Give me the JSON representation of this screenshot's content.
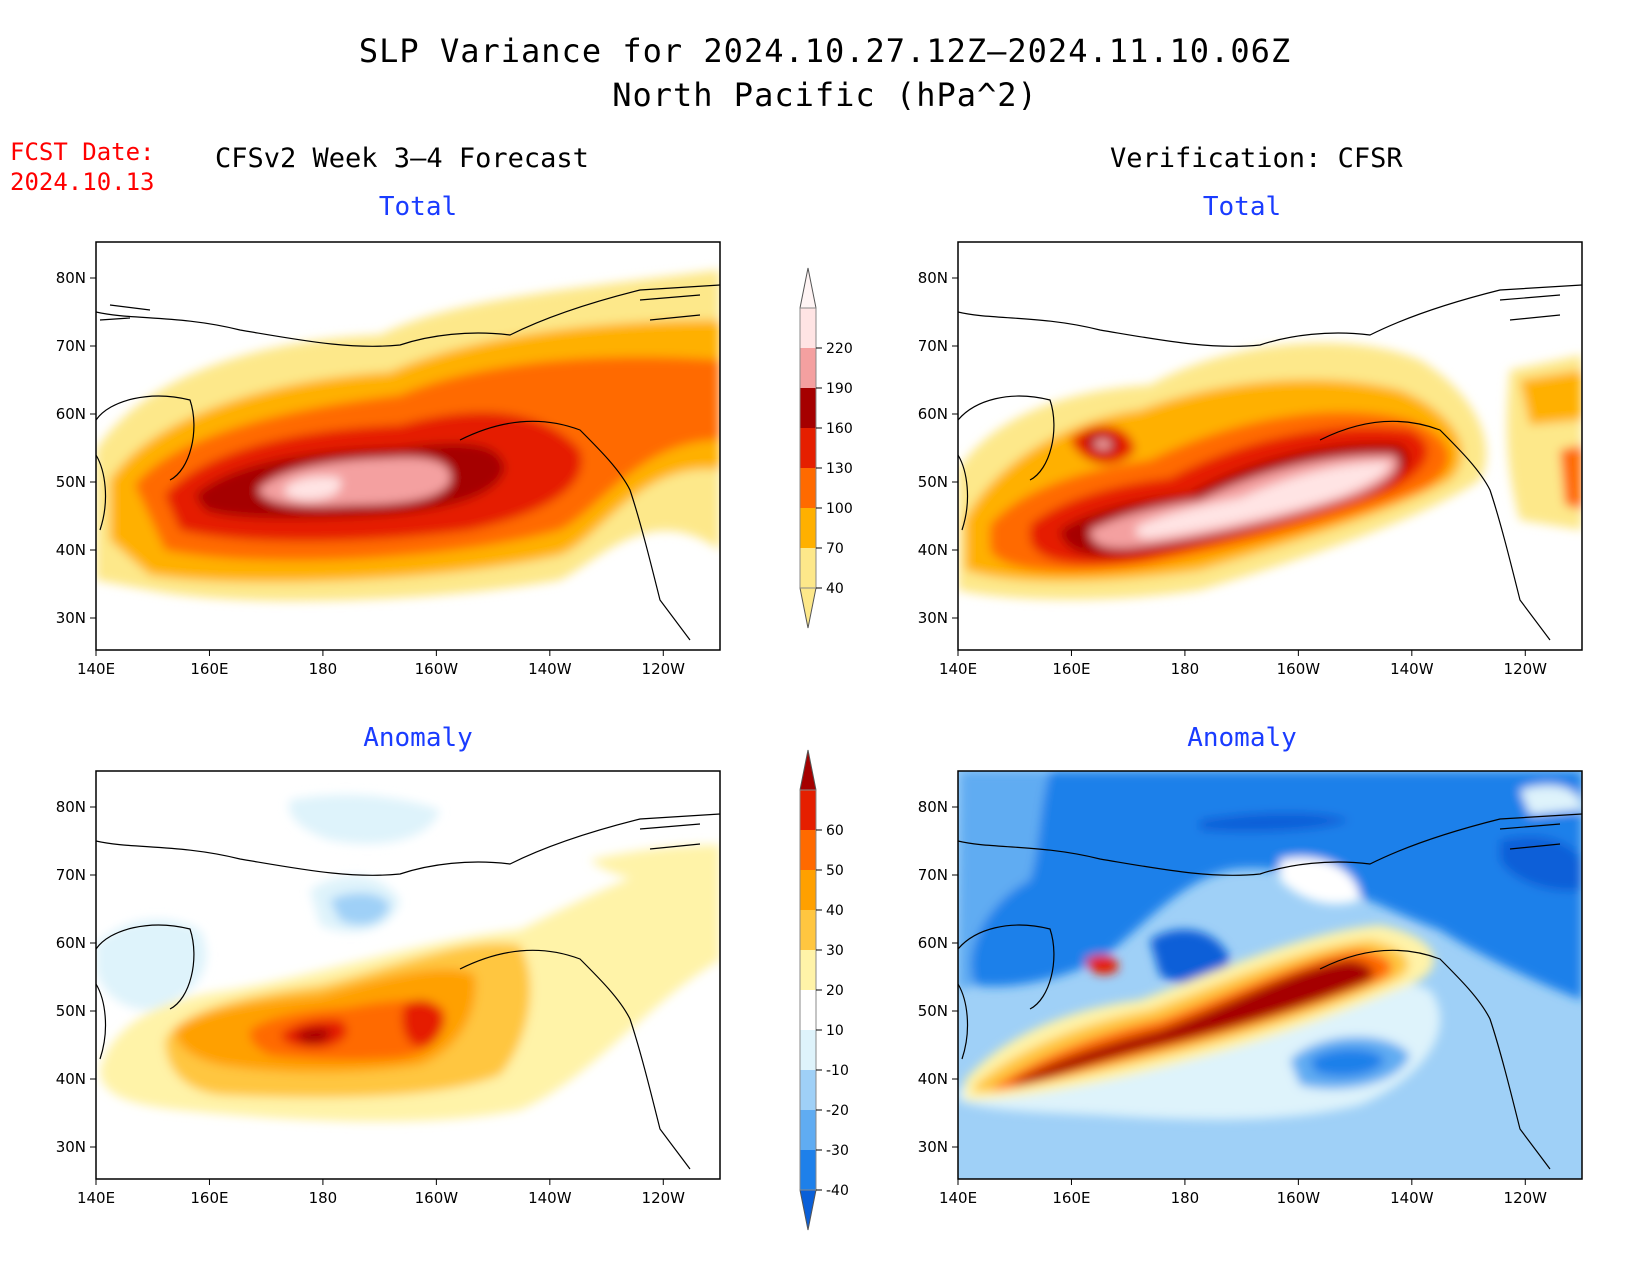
{
  "title_line1": "SLP Variance for 2024.10.27.12Z–2024.11.10.06Z",
  "title_line2": "North Pacific (hPa^2)",
  "fcst_label": "FCST Date:",
  "fcst_date": "2024.10.13",
  "left_header": "CFSv2 Week 3–4 Forecast",
  "right_header": "Verification: CFSR",
  "panels": {
    "fcst_total": {
      "title": "Total"
    },
    "ver_total": {
      "title": "Total"
    },
    "fcst_anom": {
      "title": "Anomaly"
    },
    "ver_anom": {
      "title": "Anomaly"
    }
  },
  "lon_ticks": [
    "140E",
    "160E",
    "180",
    "160W",
    "140W",
    "120W"
  ],
  "lat_ticks": [
    "80N",
    "70N",
    "60N",
    "50N",
    "40N",
    "30N"
  ],
  "total_colorbar": {
    "levels": [
      "40",
      "70",
      "100",
      "130",
      "160",
      "190",
      "220"
    ],
    "colors": [
      "#fde88a",
      "#ffb000",
      "#ff6a00",
      "#e51f00",
      "#a50000",
      "#f4a0a0",
      "#ffe4e4"
    ]
  },
  "anomaly_colorbar": {
    "levels": [
      "-40",
      "-30",
      "-20",
      "-10",
      "10",
      "20",
      "30",
      "40",
      "50",
      "60"
    ],
    "colors": [
      "#0a5fd8",
      "#1e80ea",
      "#60acf2",
      "#9fd0f7",
      "#def3fb",
      "#ffffff",
      "#fff3a8",
      "#ffc640",
      "#ffa000",
      "#ff6a00",
      "#e51f00",
      "#a50000"
    ]
  }
}
